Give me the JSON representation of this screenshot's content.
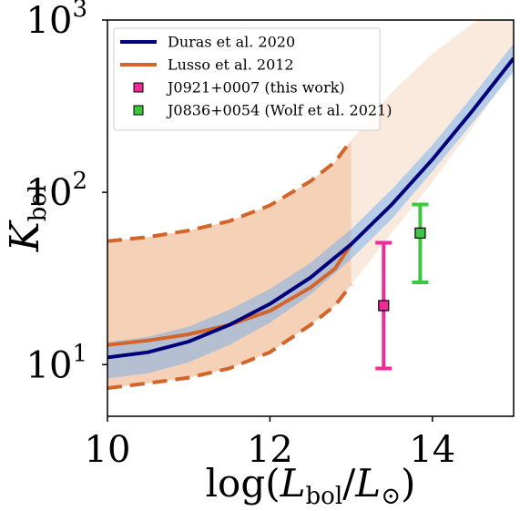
{
  "chart_data": {
    "type": "line",
    "xlabel": {
      "base": "log(",
      "main": "L",
      "sub": "bol",
      "slash": "/",
      "main2": "L",
      "sub2": "⊙",
      "close": ")"
    },
    "ylabel": {
      "main": "K",
      "sub": "bol"
    },
    "xlim": [
      10,
      15
    ],
    "ylim_log10": [
      0.7,
      3.0
    ],
    "yscale": "log",
    "grid": false,
    "legend_position": "top-left",
    "x_ticks": [
      10,
      12,
      14
    ],
    "x_tick_labels": [
      "10",
      "12",
      "14"
    ],
    "y_ticks": [
      {
        "exp": 1,
        "label": "10",
        "sup": "1"
      },
      {
        "exp": 2,
        "label": "10",
        "sup": "2"
      },
      {
        "exp": 3,
        "label": "10",
        "sup": "3"
      }
    ],
    "colors": {
      "duras": "#00007a",
      "duras_band": "#66a8f2",
      "lusso": "#d4652a",
      "lusso_band": "#f0b892",
      "pink": "#f02a96",
      "green": "#3cc83c"
    },
    "series": [
      {
        "name": "Duras et al. 2020",
        "x": [
          10,
          10.5,
          11,
          11.5,
          12,
          12.5,
          13,
          13.5,
          14,
          14.5,
          15
        ],
        "y": [
          11.0,
          11.8,
          13.6,
          17.0,
          22.5,
          32.0,
          50,
          85,
          155,
          300,
          600
        ],
        "band_lo": [
          8.3,
          8.9,
          10.3,
          13.0,
          17.5,
          25.5,
          41,
          70,
          132,
          255,
          500
        ],
        "band_hi": [
          13.5,
          14.5,
          16.6,
          20.8,
          27.5,
          39.0,
          61,
          104,
          188,
          365,
          730
        ]
      },
      {
        "name": "Lusso et al. 2012",
        "x": [
          10,
          10.5,
          11,
          11.5,
          12,
          12.5,
          12.8,
          13
        ],
        "y": [
          13.0,
          13.8,
          15.0,
          17.0,
          20.5,
          28.0,
          36.0,
          50
        ],
        "band_lo": [
          7.3,
          7.8,
          8.4,
          9.5,
          11.8,
          17.0,
          22.0,
          29
        ],
        "band_hi": [
          52,
          55,
          60,
          68,
          84,
          116,
          150,
          200
        ],
        "extension_x": [
          13,
          13.5,
          14,
          14.5,
          15
        ],
        "extension_lo": [
          29,
          58,
          115,
          240,
          520
        ],
        "extension_hi": [
          200,
          380,
          640,
          960,
          1300
        ]
      }
    ],
    "points": [
      {
        "name": "J0921+0007 (this work)",
        "x": 13.4,
        "y": 22,
        "err_lo": 9.5,
        "err_hi": 51,
        "color_key": "pink"
      },
      {
        "name": "J0836+0054 (Wolf et al. 2021)",
        "x": 13.85,
        "y": 58,
        "err_lo": 30,
        "err_hi": 85,
        "color_key": "green"
      }
    ]
  }
}
